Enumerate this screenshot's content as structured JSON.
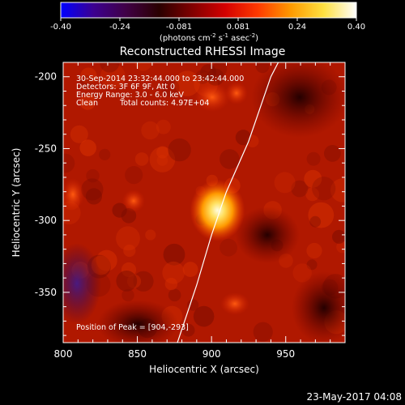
{
  "colorbar": {
    "ticks": [
      "-0.40",
      "-0.24",
      "-0.081",
      "0.081",
      "0.24",
      "0.40"
    ],
    "units_prefix": "(photons cm",
    "units_sup1": "-2",
    "units_mid": " s",
    "units_sup2": "-1",
    "units_end": " asec",
    "units_sup3": "-2",
    "units_close": ")",
    "gradient": [
      "#0000ff",
      "#3c0090",
      "#400045",
      "#2a0000",
      "#800000",
      "#d40000",
      "#ff3a00",
      "#ff9a00",
      "#ffe040",
      "#ffffff"
    ]
  },
  "title": "Reconstructed RHESSI Image",
  "info": {
    "line1": "30-Sep-2014 23:32:44.000 to 23:42:44.000",
    "line2": "Detectors: 3F 6F 9F, Att 0",
    "line3": "Energy Range: 3.0 - 6.0 keV",
    "line4a": "Clean",
    "line4b": "Total counts: 4.97E+04"
  },
  "peak_text": "Position of Peak = [904,-293]",
  "axes": {
    "xlabel": "Heliocentric X (arcsec)",
    "ylabel": "Heliocentric Y (arcsec)",
    "xticks": [
      "800",
      "850",
      "900",
      "950"
    ],
    "yticks": [
      "-200",
      "-250",
      "-300",
      "-350"
    ]
  },
  "chart_data": {
    "type": "heatmap",
    "title": "Reconstructed RHESSI Image",
    "xlabel": "Heliocentric X (arcsec)",
    "ylabel": "Heliocentric Y (arcsec)",
    "xlim": [
      800,
      990
    ],
    "ylim": [
      -385,
      -190
    ],
    "xtick_values": [
      800,
      850,
      900,
      950
    ],
    "ytick_values": [
      -200,
      -250,
      -300,
      -350
    ],
    "colorbar_range": [
      -0.4,
      0.4
    ],
    "peak": [
      904,
      -293
    ],
    "limb_points": [
      [
        877,
        -385
      ],
      [
        890,
        -345
      ],
      [
        900,
        -310
      ],
      [
        910,
        -280
      ],
      [
        925,
        -245
      ],
      [
        940,
        -200
      ],
      [
        945,
        -190
      ]
    ]
  },
  "timestamp": "23-May-2017 04:08"
}
